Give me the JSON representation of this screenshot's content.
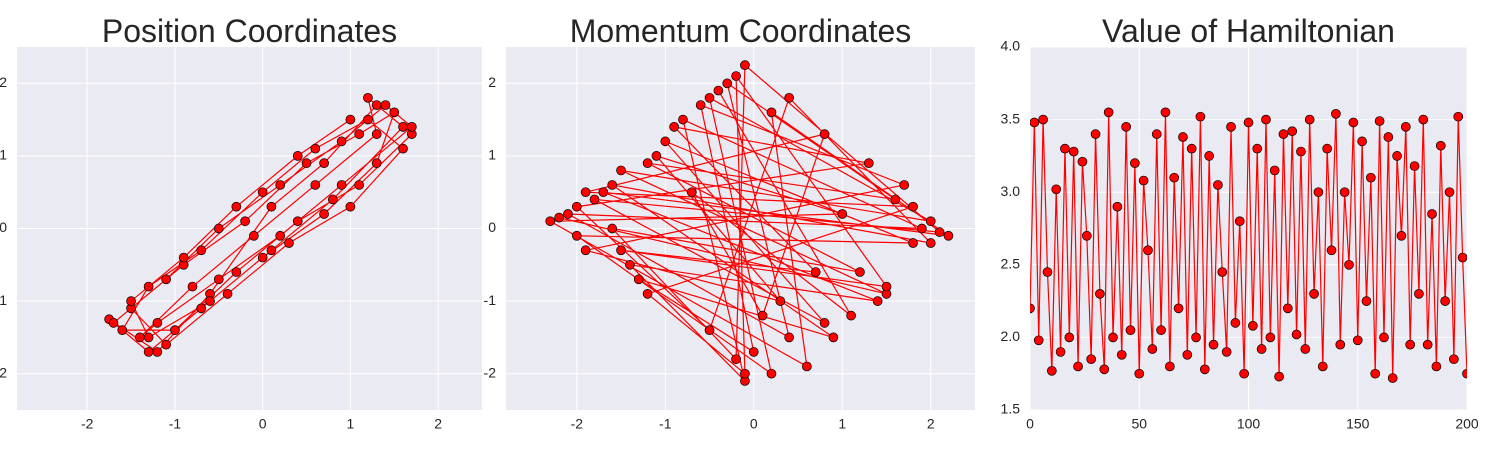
{
  "chart_data": [
    {
      "type": "line",
      "title": "Position Coordinates",
      "color": "#ff0000",
      "marker_color": "#ff0000",
      "marker_edge": "#000000",
      "background": "#eaeaf2",
      "grid": true,
      "xlim": [
        -2.8,
        2.5
      ],
      "xticks": [
        -2,
        -1,
        0,
        1,
        2
      ],
      "ylim": [
        -2.5,
        2.5
      ],
      "yticks": [
        -2,
        -1,
        0,
        1,
        2
      ],
      "x": [
        -1.75,
        -1.2,
        -0.6,
        0.1,
        0.7,
        1.3,
        1.7,
        1.1,
        0.4,
        -0.3,
        -1.0,
        -1.6,
        -1.3,
        -0.7,
        0.0,
        0.6,
        1.2,
        1.6,
        1.0,
        0.3,
        -0.4,
        -1.1,
        -1.5,
        -0.9,
        -0.2,
        0.5,
        1.1,
        1.5,
        1.3,
        0.7,
        0.0,
        -0.7,
        -1.3,
        -1.7,
        -1.1,
        -0.5,
        0.2,
        0.9,
        1.4,
        1.7,
        0.9,
        0.2,
        -0.5,
        -1.2,
        -1.4,
        -0.8,
        -0.1,
        0.6,
        1.3,
        1.2,
        1.6,
        0.8,
        0.1,
        -0.6,
        -1.3,
        -1.5,
        -0.9,
        -0.3,
        0.4,
        1.0
      ],
      "values": [
        -1.25,
        -1.7,
        -0.9,
        0.3,
        0.9,
        1.7,
        1.3,
        0.6,
        0.1,
        -0.6,
        -1.4,
        -1.4,
        -0.8,
        -0.3,
        0.5,
        1.1,
        1.5,
        1.1,
        0.3,
        -0.2,
        -0.9,
        -1.6,
        -1.1,
        -0.5,
        0.1,
        0.9,
        1.3,
        1.6,
        0.9,
        0.2,
        -0.4,
        -1.1,
        -1.7,
        -1.3,
        -0.7,
        0.0,
        0.6,
        1.2,
        1.7,
        1.4,
        0.6,
        -0.1,
        -0.7,
        -1.3,
        -1.5,
        -0.8,
        -0.1,
        0.6,
        1.3,
        1.8,
        1.4,
        0.4,
        -0.3,
        -1.0,
        -1.5,
        -1.0,
        -0.4,
        0.3,
        1.0,
        1.5
      ]
    },
    {
      "type": "line",
      "title": "Momentum Coordinates",
      "color": "#ff0000",
      "marker_color": "#ff0000",
      "marker_edge": "#000000",
      "background": "#eaeaf2",
      "grid": true,
      "xlim": [
        -2.8,
        2.5
      ],
      "xticks": [
        -2,
        -1,
        0,
        1,
        2
      ],
      "ylim": [
        -2.5,
        2.5
      ],
      "yticks": [
        -2,
        -1,
        0,
        1,
        2
      ],
      "x": [
        -2.2,
        1.5,
        -1.5,
        2.0,
        -0.5,
        0.2,
        -2.0,
        1.8,
        -1.0,
        0.8,
        -1.8,
        2.1,
        -0.1,
        -0.2,
        -1.6,
        1.2,
        -1.2,
        1.6,
        -0.3,
        0.4,
        -2.1,
        1.9,
        -0.8,
        -0.1,
        -1.4,
        1.4,
        -1.7,
        2.2,
        0.2,
        0.6,
        -2.3,
        1.0,
        -1.1,
        0.3,
        -1.9,
        1.7,
        -0.6,
        0.0,
        -1.3,
        0.9,
        -1.6,
        2.0,
        0.4,
        -0.5,
        -2.0,
        1.3,
        -0.9,
        0.7,
        -1.5,
        1.5,
        -0.2,
        -0.1,
        -1.2,
        1.8,
        -1.9,
        0.8,
        0.1,
        -0.7,
        1.1,
        -0.4
      ],
      "values": [
        0.15,
        -0.9,
        0.8,
        0.1,
        1.8,
        -2.0,
        -0.1,
        -0.2,
        1.2,
        -1.3,
        0.4,
        -0.05,
        2.25,
        -1.8,
        0.0,
        -0.6,
        0.9,
        0.4,
        2.0,
        -1.5,
        0.2,
        0.0,
        1.5,
        -2.1,
        -0.5,
        -1.0,
        0.5,
        -0.1,
        1.6,
        -1.9,
        0.1,
        0.2,
        1.0,
        -1.0,
        -0.3,
        0.6,
        1.7,
        -1.7,
        -0.7,
        -1.5,
        0.6,
        -0.2,
        1.8,
        -1.4,
        0.3,
        0.9,
        1.4,
        -0.6,
        -0.3,
        -0.8,
        2.1,
        -2.0,
        -0.9,
        0.3,
        0.5,
        1.3,
        -1.2,
        0.5,
        -1.2,
        1.9
      ]
    },
    {
      "type": "line",
      "title": "Value of Hamiltonian",
      "color": "#ff0000",
      "marker_color": "#ff0000",
      "marker_edge": "#000000",
      "background": "#eaeaf2",
      "grid": true,
      "xlim": [
        0,
        200
      ],
      "xticks": [
        0,
        50,
        100,
        150,
        200
      ],
      "ylim": [
        1.5,
        4.0
      ],
      "yticks": [
        1.5,
        {
          "value": 2.0,
          "label": "2.0"
        },
        2.5,
        {
          "value": 3.0,
          "label": "3.0"
        },
        3.5,
        {
          "value": 4.0,
          "label": "4.0"
        }
      ],
      "x": [
        0,
        2,
        4,
        6,
        8,
        10,
        12,
        14,
        16,
        18,
        20,
        22,
        24,
        26,
        28,
        30,
        32,
        34,
        36,
        38,
        40,
        42,
        44,
        46,
        48,
        50,
        52,
        54,
        56,
        58,
        60,
        62,
        64,
        66,
        68,
        70,
        72,
        74,
        76,
        78,
        80,
        82,
        84,
        86,
        88,
        90,
        92,
        94,
        96,
        98,
        100,
        102,
        104,
        106,
        108,
        110,
        112,
        114,
        116,
        118,
        120,
        122,
        124,
        126,
        128,
        130,
        132,
        134,
        136,
        138,
        140,
        142,
        144,
        146,
        148,
        150,
        152,
        154,
        156,
        158,
        160,
        162,
        164,
        166,
        168,
        170,
        172,
        174,
        176,
        178,
        180,
        182,
        184,
        186,
        188,
        190,
        192,
        194,
        196,
        198,
        200
      ],
      "values": [
        2.2,
        3.48,
        1.98,
        3.5,
        2.45,
        1.77,
        3.02,
        1.9,
        3.3,
        2.0,
        3.28,
        1.8,
        3.21,
        2.7,
        1.85,
        3.4,
        2.3,
        1.78,
        3.55,
        2.0,
        2.9,
        1.88,
        3.45,
        2.05,
        3.2,
        1.75,
        3.08,
        2.6,
        1.92,
        3.4,
        2.05,
        3.55,
        1.8,
        3.1,
        2.2,
        3.38,
        1.88,
        3.3,
        2.0,
        3.52,
        1.78,
        3.25,
        1.95,
        3.05,
        2.45,
        1.9,
        3.45,
        2.1,
        2.8,
        1.75,
        3.48,
        2.08,
        3.3,
        1.92,
        3.5,
        2.0,
        3.15,
        1.73,
        3.4,
        2.2,
        3.42,
        2.02,
        3.28,
        1.92,
        3.5,
        2.3,
        3.0,
        1.8,
        3.3,
        2.6,
        3.54,
        1.95,
        3.0,
        2.5,
        3.48,
        1.98,
        3.35,
        2.25,
        3.1,
        1.75,
        3.49,
        2.0,
        3.38,
        1.72,
        3.25,
        2.7,
        3.45,
        1.95,
        3.18,
        2.3,
        3.5,
        1.95,
        2.85,
        1.8,
        3.32,
        2.25,
        3.0,
        1.85,
        3.52,
        2.55,
        1.75
      ]
    }
  ]
}
